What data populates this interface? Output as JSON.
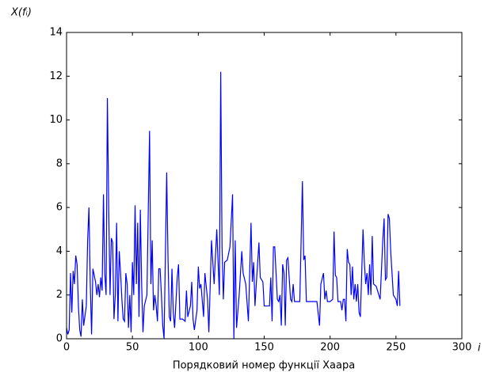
{
  "chart_data": {
    "type": "line",
    "ylabel": "X(fᵢ)",
    "xlabel": "Порядковий номер функції Хаара",
    "xlabel_short": "i",
    "color": "#0000ff",
    "xlim": [
      0,
      300
    ],
    "xticks": [
      0,
      50,
      100,
      150,
      200,
      250,
      300
    ],
    "ylim": [
      0,
      14
    ],
    "yticks": [
      0,
      2,
      4,
      6,
      8,
      10,
      12,
      14
    ],
    "x": [
      0,
      1,
      2,
      3,
      4,
      5,
      6,
      7,
      8,
      9,
      10,
      11,
      12,
      13,
      15,
      16,
      17,
      18,
      19,
      20,
      22,
      23,
      24,
      25,
      26,
      27,
      28,
      29,
      30,
      31,
      32,
      33,
      34,
      35,
      36,
      37,
      38,
      39,
      40,
      41,
      42,
      43,
      44,
      45,
      46,
      47,
      48,
      49,
      50,
      51,
      52,
      53,
      54,
      55,
      56,
      57,
      58,
      59,
      61,
      63,
      64,
      65,
      66,
      67,
      68,
      69,
      70,
      71,
      72,
      73,
      74,
      76,
      77,
      78,
      79,
      80,
      81,
      82,
      84,
      85,
      86,
      88,
      90,
      91,
      92,
      94,
      95,
      96,
      97,
      99,
      100,
      101,
      102,
      104,
      105,
      107,
      108,
      110,
      112,
      114,
      116,
      117,
      118,
      119,
      120,
      122,
      124,
      126,
      127,
      128,
      129,
      131,
      133,
      134,
      136,
      138,
      140,
      141,
      142,
      143,
      144,
      146,
      147,
      149,
      150,
      152,
      154,
      155,
      156,
      157,
      158,
      160,
      161,
      162,
      163,
      164,
      165,
      166,
      167,
      168,
      170,
      171,
      172,
      173,
      175,
      177,
      179,
      180,
      181,
      182,
      184,
      186,
      188,
      190,
      192,
      193,
      195,
      196,
      197,
      198,
      200,
      202,
      203,
      204,
      205,
      206,
      208,
      209,
      210,
      211,
      212,
      213,
      214,
      215,
      216,
      217,
      218,
      219,
      220,
      221,
      222,
      223,
      225,
      226,
      227,
      228,
      229,
      230,
      231,
      232,
      233,
      235,
      236,
      238,
      240,
      241,
      242,
      243,
      244,
      245,
      246,
      248,
      250,
      251,
      252,
      253
    ],
    "values": [
      0.5,
      0.2,
      0.4,
      3.0,
      1.2,
      3.1,
      2.5,
      3.8,
      3.4,
      1.5,
      0.4,
      0.1,
      1.8,
      0.6,
      1.5,
      4.5,
      6.0,
      2.5,
      0.2,
      3.2,
      2.6,
      2.0,
      2.5,
      1.9,
      2.8,
      2.2,
      6.6,
      3.0,
      2.0,
      11.0,
      6.0,
      2.0,
      4.6,
      4.4,
      0.9,
      2.0,
      5.3,
      0.8,
      4.0,
      3.0,
      1.8,
      0.9,
      0.8,
      3.0,
      2.5,
      0.5,
      2.0,
      0.3,
      3.5,
      2.0,
      6.1,
      2.5,
      5.3,
      1.0,
      5.9,
      2.5,
      0.3,
      1.5,
      2.0,
      9.5,
      2.5,
      4.5,
      1.3,
      2.0,
      1.5,
      0.8,
      3.2,
      3.2,
      2.0,
      0.6,
      0.0,
      7.6,
      3.7,
      1.0,
      0.8,
      3.2,
      1.2,
      0.5,
      2.8,
      3.4,
      0.9,
      0.9,
      0.8,
      2.2,
      1.0,
      1.5,
      2.6,
      0.9,
      0.4,
      1.3,
      3.3,
      2.3,
      2.5,
      1.0,
      3.0,
      1.8,
      0.3,
      4.5,
      2.5,
      5.0,
      2.0,
      12.2,
      4.2,
      1.8,
      3.5,
      3.6,
      4.2,
      6.6,
      0.0,
      4.5,
      0.5,
      2.0,
      4.0,
      3.0,
      2.5,
      0.8,
      5.3,
      2.6,
      3.5,
      1.5,
      2.5,
      4.4,
      2.8,
      2.6,
      1.5,
      1.5,
      1.5,
      2.8,
      0.8,
      4.2,
      4.2,
      1.8,
      1.7,
      2.0,
      0.6,
      3.4,
      3.0,
      0.6,
      3.6,
      3.7,
      1.8,
      1.7,
      2.5,
      1.7,
      1.7,
      1.7,
      7.2,
      3.6,
      3.8,
      1.7,
      1.7,
      1.7,
      1.7,
      1.7,
      0.6,
      2.5,
      3.0,
      1.8,
      2.2,
      1.7,
      1.7,
      1.8,
      4.9,
      2.9,
      2.8,
      1.7,
      1.7,
      1.3,
      1.8,
      1.8,
      0.8,
      4.1,
      3.5,
      3.4,
      2.0,
      3.3,
      1.8,
      2.5,
      1.7,
      2.5,
      1.2,
      1.0,
      5.0,
      3.5,
      2.5,
      3.0,
      2.0,
      3.4,
      2.0,
      4.7,
      2.5,
      2.4,
      2.2,
      1.8,
      4.5,
      5.5,
      2.7,
      2.8,
      5.7,
      5.5,
      4.0,
      2.0,
      1.8,
      1.5,
      3.1,
      1.5
    ]
  }
}
